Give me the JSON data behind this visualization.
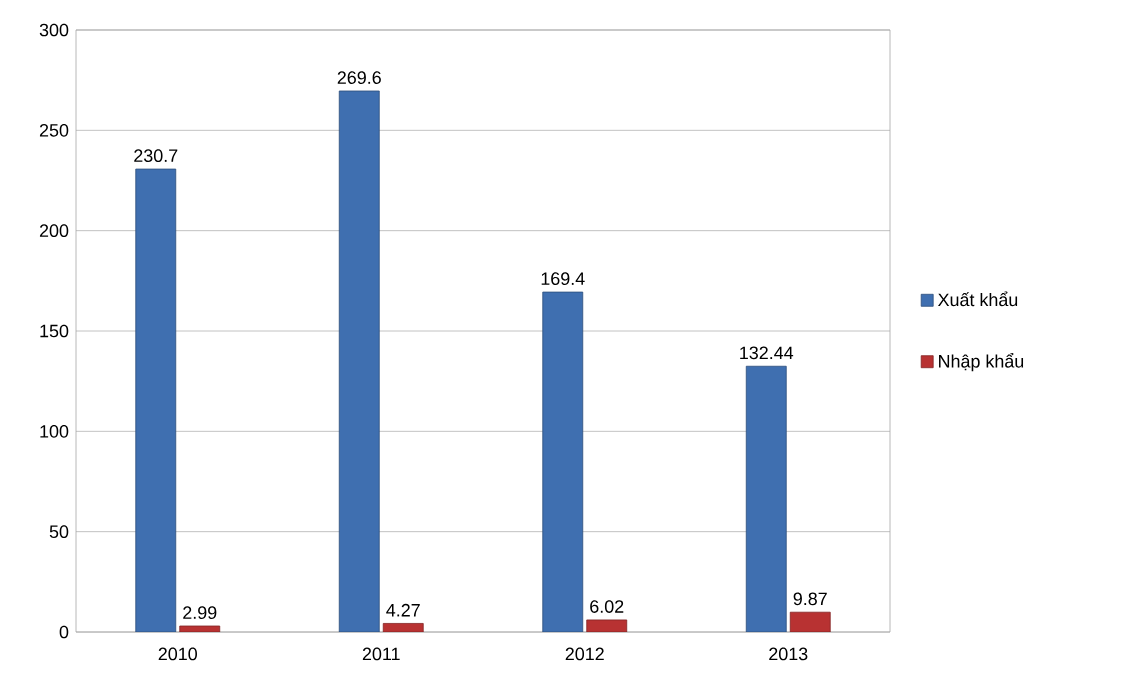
{
  "chart_data": {
    "type": "bar",
    "categories": [
      "2010",
      "2011",
      "2012",
      "2013"
    ],
    "series": [
      {
        "name": "Xuất khẩu",
        "color": "#3f6fb0",
        "values": [
          230.7,
          269.6,
          169.4,
          132.44
        ]
      },
      {
        "name": "Nhập khẩu",
        "color": "#b83232",
        "values": [
          2.99,
          4.27,
          6.02,
          9.87
        ]
      }
    ],
    "ylim": [
      0,
      300
    ],
    "yticks": [
      0,
      50,
      100,
      150,
      200,
      250,
      300
    ],
    "grid": "y",
    "legend": "right",
    "data_labels": true
  }
}
